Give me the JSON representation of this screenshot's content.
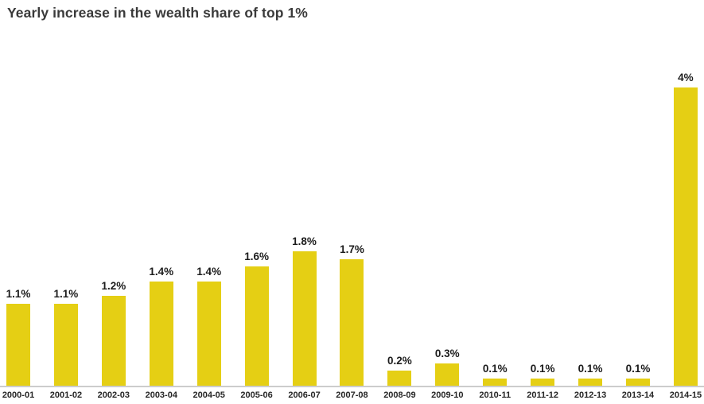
{
  "chart_data": {
    "type": "bar",
    "title": "Yearly increase in the wealth share of top 1%",
    "categories": [
      "2000-01",
      "2001-02",
      "2002-03",
      "2003-04",
      "2004-05",
      "2005-06",
      "2006-07",
      "2007-08",
      "2008-09",
      "2009-10",
      "2010-11",
      "2011-12",
      "2012-13",
      "2013-14",
      "2014-15"
    ],
    "values": [
      1.1,
      1.1,
      1.2,
      1.4,
      1.4,
      1.6,
      1.8,
      1.7,
      0.2,
      0.3,
      0.1,
      0.1,
      0.1,
      0.1,
      4
    ],
    "value_labels": [
      "1.1%",
      "1.1%",
      "1.2%",
      "1.4%",
      "1.4%",
      "1.6%",
      "1.8%",
      "1.7%",
      "0.2%",
      "0.3%",
      "0.1%",
      "0.1%",
      "0.1%",
      "0.1%",
      "4%"
    ],
    "xlabel": "",
    "ylabel": "",
    "ylim": [
      0,
      4.2
    ],
    "grid": false,
    "legend": false,
    "bar_color": "#e5cf14",
    "axis_line_color": "#cccccc",
    "value_labels_position": "above-bars"
  }
}
